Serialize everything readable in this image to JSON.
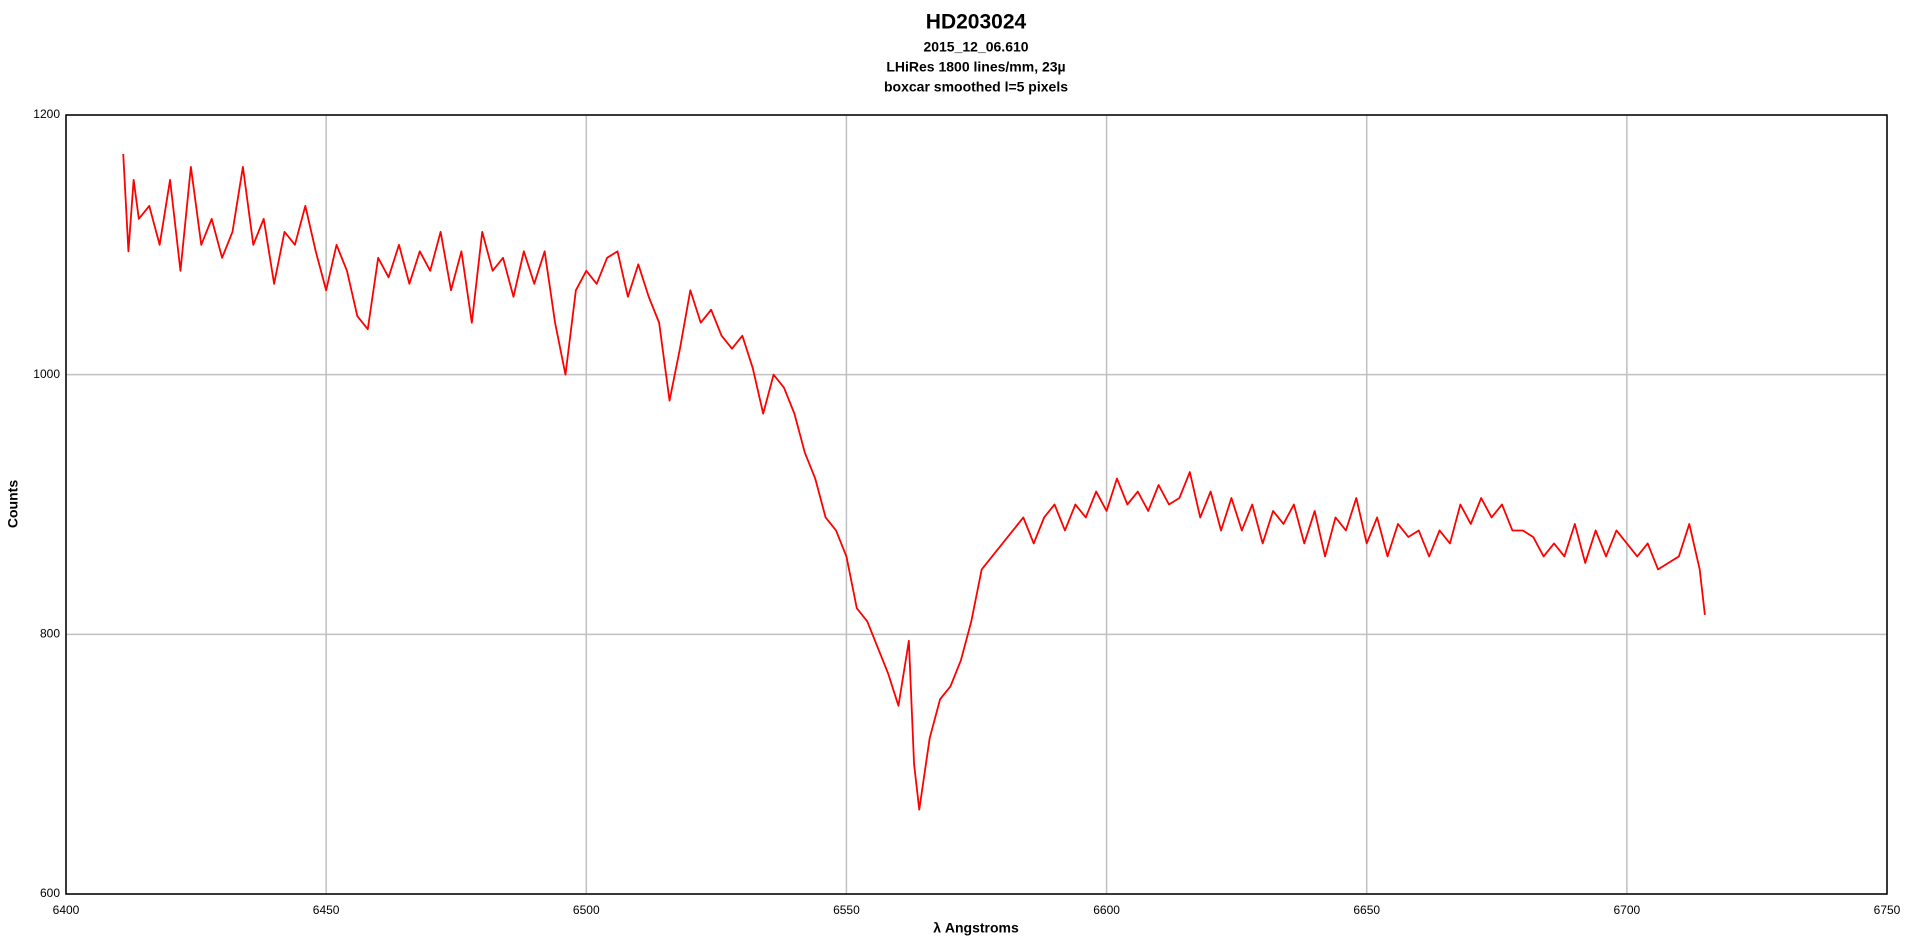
{
  "chart_data": {
    "type": "line",
    "title": "HD203024",
    "subtitles": [
      "2015_12_06.610",
      "LHiRes 1800 lines/mm, 23µ",
      "boxcar smoothed l=5 pixels"
    ],
    "x_label": "λ Angstroms",
    "y_label": "Counts",
    "xlim": [
      6400,
      6750
    ],
    "xticks": [
      6400,
      6450,
      6500,
      6550,
      6600,
      6650,
      6700,
      6750
    ],
    "ylim": [
      600,
      1200
    ],
    "yticks": [
      600,
      800,
      1000,
      1200
    ],
    "grid": true,
    "series": [
      {
        "color": "#ff0000",
        "x": [
          6411,
          6412,
          6413,
          6414,
          6416,
          6418,
          6420,
          6422,
          6424,
          6426,
          6428,
          6430,
          6432,
          6434,
          6436,
          6438,
          6440,
          6442,
          6444,
          6446,
          6448,
          6450,
          6452,
          6454,
          6456,
          6458,
          6460,
          6462,
          6464,
          6466,
          6468,
          6470,
          6472,
          6474,
          6476,
          6478,
          6480,
          6482,
          6484,
          6486,
          6488,
          6490,
          6492,
          6494,
          6496,
          6498,
          6500,
          6502,
          6504,
          6506,
          6508,
          6510,
          6512,
          6514,
          6516,
          6518,
          6520,
          6522,
          6524,
          6526,
          6528,
          6530,
          6532,
          6534,
          6536,
          6538,
          6540,
          6542,
          6544,
          6546,
          6548,
          6550,
          6552,
          6554,
          6556,
          6558,
          6560,
          6562,
          6563,
          6564,
          6566,
          6568,
          6570,
          6572,
          6574,
          6576,
          6578,
          6580,
          6582,
          6584,
          6586,
          6588,
          6590,
          6592,
          6594,
          6596,
          6598,
          6600,
          6602,
          6604,
          6606,
          6608,
          6610,
          6612,
          6614,
          6616,
          6618,
          6620,
          6622,
          6624,
          6626,
          6628,
          6630,
          6632,
          6634,
          6636,
          6638,
          6640,
          6642,
          6644,
          6646,
          6648,
          6650,
          6652,
          6654,
          6656,
          6658,
          6660,
          6662,
          6664,
          6666,
          6668,
          6670,
          6672,
          6674,
          6676,
          6678,
          6680,
          6682,
          6684,
          6686,
          6688,
          6690,
          6692,
          6694,
          6696,
          6698,
          6700,
          6702,
          6704,
          6706,
          6708,
          6710,
          6712,
          6714,
          6715
        ],
        "values": [
          1170,
          1095,
          1150,
          1120,
          1130,
          1100,
          1150,
          1080,
          1160,
          1100,
          1120,
          1090,
          1110,
          1160,
          1100,
          1120,
          1070,
          1110,
          1100,
          1130,
          1095,
          1065,
          1100,
          1080,
          1045,
          1035,
          1090,
          1075,
          1100,
          1070,
          1095,
          1080,
          1110,
          1065,
          1095,
          1040,
          1110,
          1080,
          1090,
          1060,
          1095,
          1070,
          1095,
          1040,
          1000,
          1065,
          1080,
          1070,
          1090,
          1095,
          1060,
          1085,
          1060,
          1040,
          980,
          1020,
          1065,
          1040,
          1050,
          1030,
          1020,
          1030,
          1005,
          970,
          1000,
          990,
          970,
          940,
          920,
          890,
          880,
          860,
          820,
          810,
          790,
          770,
          745,
          795,
          700,
          665,
          720,
          750,
          760,
          780,
          810,
          850,
          860,
          870,
          880,
          890,
          870,
          890,
          900,
          880,
          900,
          890,
          910,
          895,
          920,
          900,
          910,
          895,
          915,
          900,
          905,
          925,
          890,
          910,
          880,
          905,
          880,
          900,
          870,
          895,
          885,
          900,
          870,
          895,
          860,
          890,
          880,
          905,
          870,
          890,
          860,
          885,
          875,
          880,
          860,
          880,
          870,
          900,
          885,
          905,
          890,
          900,
          880,
          880,
          875,
          860,
          870,
          860,
          885,
          855,
          880,
          860,
          880,
          870,
          860,
          870,
          850,
          855,
          860,
          885,
          850,
          815
        ]
      }
    ]
  }
}
